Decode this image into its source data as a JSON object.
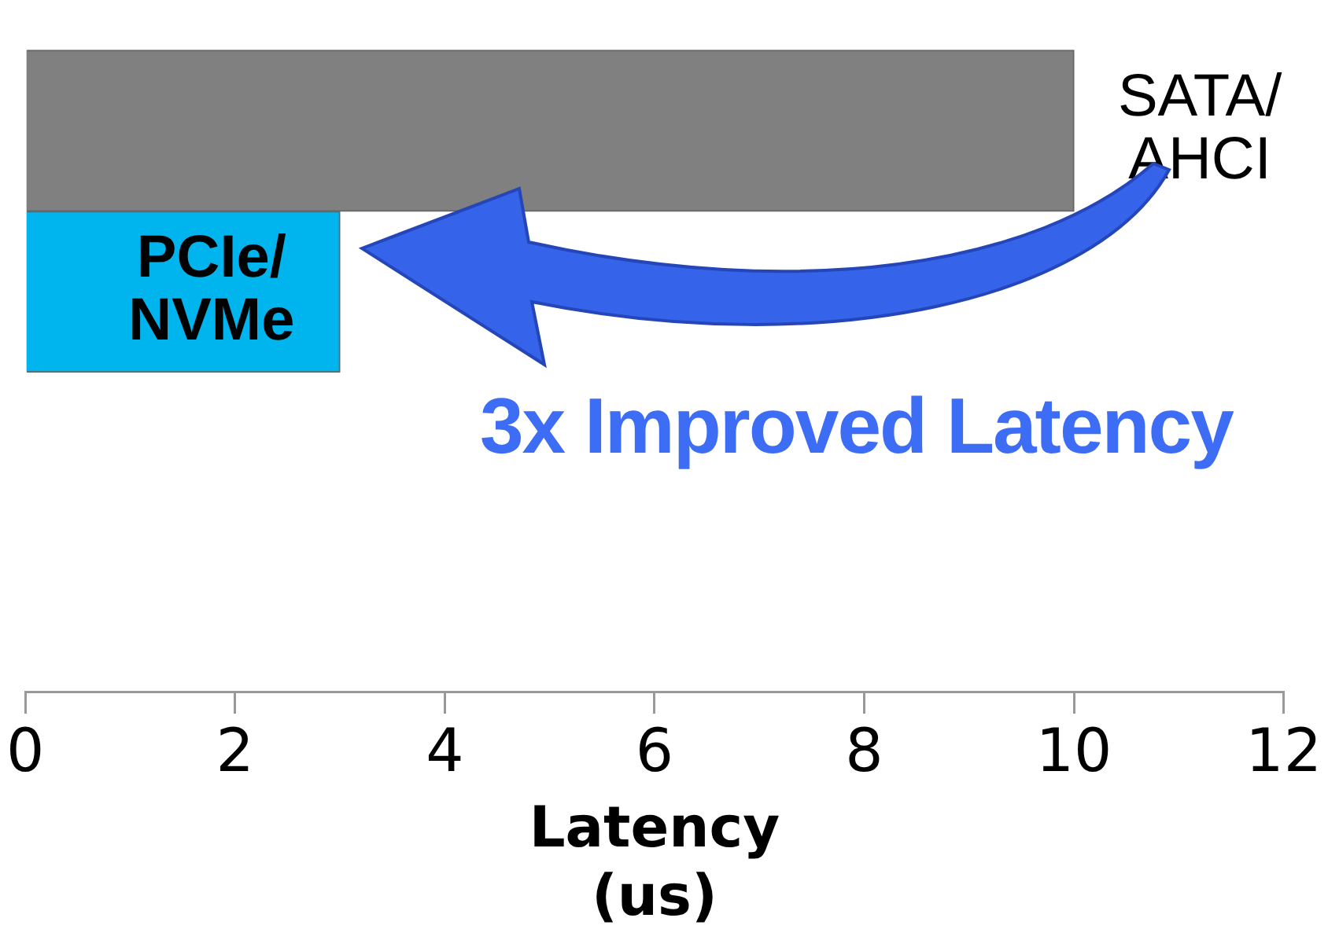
{
  "chart_data": {
    "type": "bar",
    "orientation": "horizontal",
    "categories": [
      "SATA/\nAHCI",
      "PCIe/\nNVMe"
    ],
    "colors": [
      "#808080",
      "#00b4ee"
    ],
    "values": [
      10,
      3
    ],
    "xlabel": "Latency\n(us)",
    "xlim": [
      0,
      12
    ],
    "xticks": [
      0,
      2,
      4,
      6,
      8,
      10,
      12
    ],
    "grid": false,
    "legend": false,
    "tick_labels": "x",
    "annotations": [
      "3x Improved Latency"
    ]
  }
}
